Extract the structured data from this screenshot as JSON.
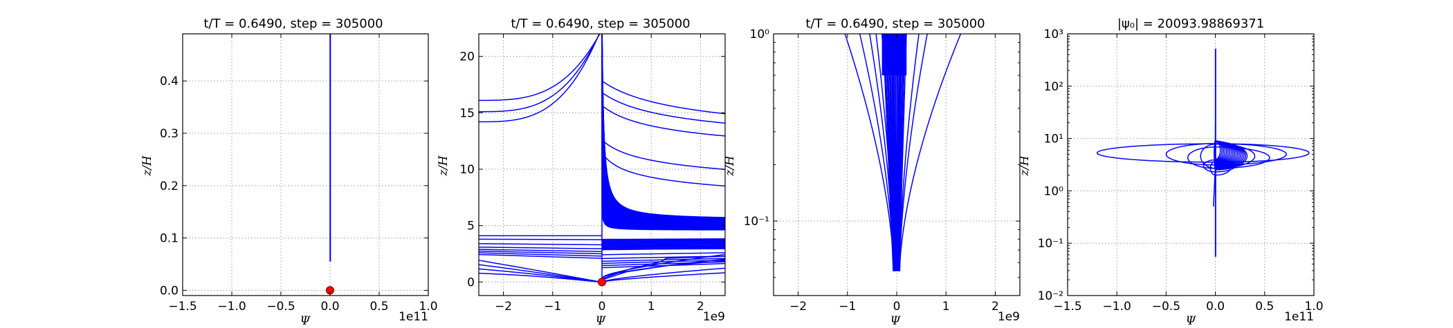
{
  "chart_data": [
    {
      "type": "line",
      "title": "t/T = 0.6490, step = 305000",
      "xlabel": "Ψ",
      "ylabel": "z/H",
      "xlim": [
        -1.5,
        1.0
      ],
      "ylim": [
        -0.01,
        0.49
      ],
      "xscale": "linear",
      "yscale": "linear",
      "grid": true,
      "offset_text": "1e11",
      "xticks": [
        "−1.5",
        "−1.0",
        "−0.5",
        "0.0",
        "0.5",
        "1.0"
      ],
      "yticks": [
        "0.0",
        "0.1",
        "0.2",
        "0.3",
        "0.4"
      ],
      "series": [
        {
          "x": [
            0,
            0
          ],
          "y": [
            0.055,
            0.49
          ],
          "color": "#0000ff"
        }
      ],
      "marker": {
        "x": 0,
        "y": 0,
        "color": "#ff0000"
      }
    },
    {
      "type": "line",
      "title": "t/T = 0.6490, step = 305000",
      "xlabel": "Ψ",
      "ylabel": "z/H",
      "xlim": [
        -2.5,
        2.5
      ],
      "ylim": [
        -1.2,
        22
      ],
      "xscale": "linear",
      "yscale": "linear",
      "grid": true,
      "offset_text": "1e9",
      "xticks": [
        "−2",
        "−1",
        "0",
        "1",
        "2"
      ],
      "yticks": [
        "0",
        "5",
        "10",
        "15",
        "20"
      ],
      "marker": {
        "x": 0,
        "y": 0,
        "color": "#ff0000"
      }
    },
    {
      "type": "line",
      "title": "t/T = 0.6490, step = 305000",
      "xlabel": "Ψ",
      "ylabel": "z/H",
      "xlim": [
        -2.5,
        2.5
      ],
      "ylim": [
        0.04,
        1.0
      ],
      "xscale": "linear",
      "yscale": "log",
      "grid": true,
      "offset_text": "1e9",
      "xticks": [
        "−2",
        "−1",
        "0",
        "1",
        "2"
      ],
      "yticks": [
        "10⁻¹",
        "10⁰"
      ]
    },
    {
      "type": "line",
      "title": "|ψ₀| = 20093.98869371",
      "xlabel": "Ψ",
      "ylabel": "z/H",
      "xlim": [
        -1.5,
        1.0
      ],
      "ylim": [
        0.01,
        1000
      ],
      "xscale": "linear",
      "yscale": "log",
      "grid": true,
      "offset_text": "1e11",
      "xticks": [
        "−1.5",
        "−1.0",
        "−0.5",
        "0.0",
        "0.5",
        "1.0"
      ],
      "yticks": [
        "10⁻²",
        "10⁻¹",
        "10⁰",
        "10¹",
        "10²",
        "10³"
      ]
    }
  ]
}
